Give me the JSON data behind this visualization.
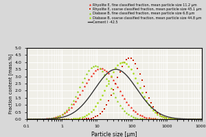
{
  "xlabel": "Particle size [µm]",
  "ylabel": "Fraction content [mass.%]",
  "xlim_log": [
    -1,
    4
  ],
  "ylim": [
    0,
    5.0
  ],
  "yticks": [
    0,
    0.5,
    1.0,
    1.5,
    2.0,
    2.5,
    3.0,
    3.5,
    4.0,
    4.5,
    5.0
  ],
  "background_color": "#d8d8d8",
  "plot_background": "#f0efe8",
  "grid_color": "#ffffff",
  "legend": [
    {
      "label": "Rhyolite E, fine classified fraction, mean particle size 11.2 µm",
      "color": "#ee1100",
      "marker": "*"
    },
    {
      "label": "Rhyolite E, coarse classified fraction, mean particle size 45.1 µm",
      "color": "#cc2200",
      "marker": "s"
    },
    {
      "label": "Diabase B, fine classified fraction, mean particle size 6.8 µm",
      "color": "#88cc00",
      "marker": "*"
    },
    {
      "label": "Diabase B, coarse classified fraction, mean particle size 44.8 µm",
      "color": "#aadd22",
      "marker": "o"
    },
    {
      "label": "Cement I -42.5",
      "color": "#333333",
      "marker": "none"
    }
  ],
  "series": {
    "rhyolite_fine": {
      "color": "#ee1100",
      "marker": "*",
      "peak": 13.0,
      "peak_val": 3.55,
      "sigma": 0.5
    },
    "rhyolite_coarse": {
      "color": "#cc2200",
      "marker": "s",
      "peak": 85.0,
      "peak_val": 4.3,
      "sigma": 0.38
    },
    "diabase_fine": {
      "color": "#88cc00",
      "marker": "*",
      "peak": 9.0,
      "peak_val": 3.75,
      "sigma": 0.43
    },
    "diabase_coarse": {
      "color": "#aadd22",
      "marker": "o",
      "peak": 55.0,
      "peak_val": 4.0,
      "sigma": 0.45
    },
    "cement": {
      "color": "#333333",
      "peak": 35.0,
      "peak_val": 3.5,
      "sigma": 0.6
    }
  },
  "n_markers": 80,
  "marker_size_star": 2.8,
  "marker_size_sq": 2.0,
  "marker_size_circ": 2.0,
  "cement_linewidth": 1.0
}
